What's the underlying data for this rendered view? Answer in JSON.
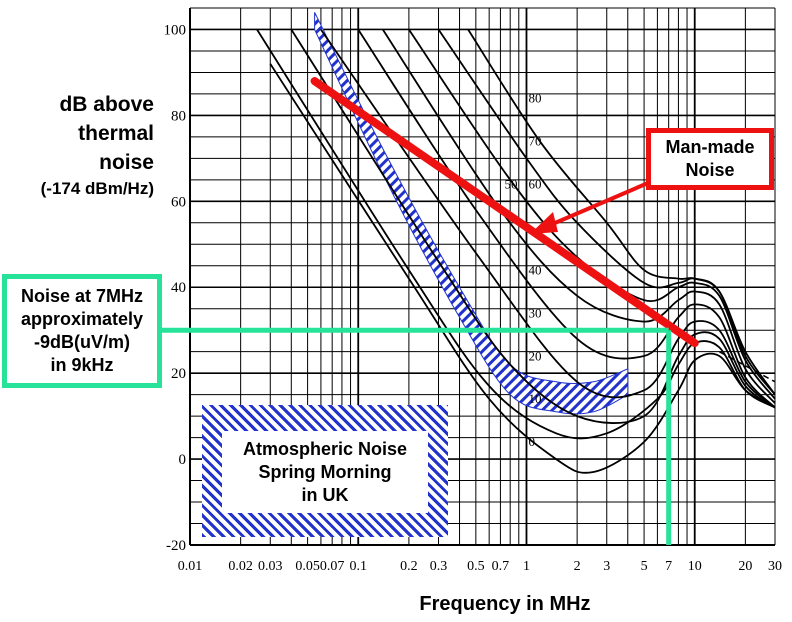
{
  "chart_data": {
    "type": "line",
    "xlabel": "Frequency in MHz",
    "ylabel": "dB above thermal noise",
    "ylabel_sub": "(-174 dBm/Hz)",
    "x_scale": "log",
    "xlim": [
      0.01,
      30
    ],
    "ylim": [
      -20,
      105
    ],
    "x_ticks": [
      0.01,
      0.02,
      0.03,
      0.05,
      0.07,
      0.1,
      0.2,
      0.3,
      0.5,
      0.7,
      1,
      2,
      3,
      5,
      7,
      10,
      20,
      30
    ],
    "x_tick_labels": [
      "0.01",
      "0.02",
      "0.03",
      "0.05",
      "0.07",
      "0.1",
      "0.2",
      "0.3",
      "0.5",
      "0.7",
      "1",
      "2",
      "3",
      "5",
      "7",
      "10",
      "20",
      "30"
    ],
    "y_ticks": [
      -20,
      0,
      20,
      40,
      60,
      80,
      100
    ],
    "y_tick_labels": [
      "-20",
      "0",
      "20",
      "40",
      "60",
      "80",
      "100"
    ],
    "grid": true,
    "family_labels": [
      {
        "text": "0",
        "x": 1.0,
        "y": 3
      },
      {
        "text": "10",
        "x": 1.0,
        "y": 13
      },
      {
        "text": "20",
        "x": 1.0,
        "y": 23
      },
      {
        "text": "30",
        "x": 1.0,
        "y": 33
      },
      {
        "text": "40",
        "x": 1.0,
        "y": 43
      },
      {
        "text": "50",
        "x": 0.72,
        "y": 63
      },
      {
        "text": "60",
        "x": 1.0,
        "y": 63
      },
      {
        "text": "70",
        "x": 1.0,
        "y": 73
      },
      {
        "text": "80",
        "x": 1.0,
        "y": 83
      }
    ],
    "series": [
      {
        "x": [
          0.06,
          0.5,
          2,
          5,
          8,
          10,
          14,
          20,
          30
        ],
        "y": [
          100,
          48,
          18,
          16,
          28,
          32,
          30,
          18,
          12
        ]
      },
      {
        "x": [
          0.1,
          0.5,
          2,
          5,
          8,
          10,
          14,
          20,
          30
        ],
        "y": [
          100,
          58,
          28,
          24,
          33,
          36,
          33,
          19,
          12
        ]
      },
      {
        "x": [
          0.14,
          0.7,
          2,
          5,
          8,
          10,
          14,
          20,
          30
        ],
        "y": [
          100,
          58,
          38,
          32,
          37,
          39,
          36,
          21,
          13
        ]
      },
      {
        "x": [
          0.2,
          0.8,
          2,
          5,
          8,
          10,
          14,
          20,
          30
        ],
        "y": [
          100,
          65,
          47,
          37,
          40,
          41,
          38,
          23,
          14
        ]
      },
      {
        "x": [
          0.3,
          1.0,
          2,
          5,
          8,
          10,
          14,
          20,
          30
        ],
        "y": [
          100,
          70,
          55,
          41,
          41,
          42,
          39,
          24,
          15
        ]
      },
      {
        "x": [
          0.45,
          1.2,
          3,
          5,
          8,
          10,
          14,
          20,
          30
        ],
        "y": [
          100,
          74,
          55,
          44,
          42,
          42,
          39,
          25,
          15
        ]
      },
      {
        "x": [
          0.04,
          0.3,
          0.8,
          2,
          5,
          8,
          10,
          14,
          20,
          30
        ],
        "y": [
          100,
          46,
          22,
          10,
          10,
          24,
          29,
          28,
          17,
          12
        ]
      },
      {
        "x": [
          0.025,
          0.2,
          0.6,
          1.5,
          3,
          6,
          8,
          10,
          14,
          20,
          30
        ],
        "y": [
          100,
          44,
          17,
          6,
          6,
          14,
          22,
          27,
          26,
          16,
          12
        ]
      },
      {
        "x": [
          0.03,
          0.2,
          0.6,
          1.5,
          2.5,
          5,
          8,
          10,
          14,
          20,
          30
        ],
        "y": [
          92,
          42,
          14,
          0,
          -3,
          4,
          16,
          23,
          24,
          16,
          12
        ]
      }
    ],
    "atmospheric_band": {
      "x": [
        0.055,
        0.15,
        0.4,
        0.8,
        1.5,
        2.5,
        4
      ],
      "y_upper": [
        104,
        70,
        40,
        22,
        18,
        18,
        21
      ],
      "y_lower": [
        100,
        64,
        33,
        15,
        11,
        11,
        15
      ]
    },
    "man_made_noise": {
      "x": [
        0.055,
        10
      ],
      "y": [
        88,
        27
      ]
    },
    "tail_dashed": {
      "x": [
        14,
        30
      ],
      "y": [
        25,
        18
      ]
    },
    "marker": {
      "x": 7,
      "y": 30
    }
  },
  "annotations": {
    "ylabel_lines": [
      "dB above",
      "thermal",
      "noise"
    ],
    "ylabel_sub": "(-174 dBm/Hz)",
    "xlabel": "Frequency in MHz",
    "man_made_lines": [
      "Man-made",
      "Noise"
    ],
    "noise_callout_lines": [
      "Noise at 7MHz",
      "approximately",
      "-9dB(uV/m)",
      "in 9kHz"
    ],
    "atmo_lines": [
      "Atmospheric Noise",
      "Spring  Morning",
      "in UK"
    ]
  },
  "colors": {
    "man_made": "#ee1111",
    "callout_green": "#27e39a",
    "atmo_blue": "#2233cc",
    "grid": "#000000"
  }
}
